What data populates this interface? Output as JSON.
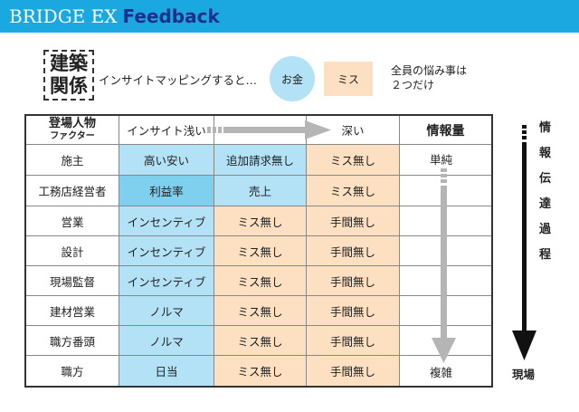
{
  "header": {
    "brand": "BRIDGE EX",
    "subtitle": "Feedback"
  },
  "industry": {
    "line1": "建築",
    "line2": "関係"
  },
  "intro": "インサイトマッピングすると…",
  "circle_label": "お金",
  "miss_label": "ミス",
  "note": {
    "line1": "全員の悩み事は",
    "line2": "２つだけ"
  },
  "table": {
    "role_header": "登場人物",
    "role_header_sub": "ファクター",
    "insight_shallow": "インサイト浅い",
    "insight_deep": "深い",
    "info_header": "情報量",
    "rows": [
      {
        "role": "施主",
        "c1": "高い安い",
        "c2": "追加請求無し",
        "c3": "ミス無し"
      },
      {
        "role": "工務店経営者",
        "c1": "利益率",
        "c2": "売上",
        "c3": "ミス無し"
      },
      {
        "role": "営業",
        "c1": "インセンティブ",
        "c2": "ミス無し",
        "c3": "手間無し"
      },
      {
        "role": "設計",
        "c1": "インセンティブ",
        "c2": "ミス無し",
        "c3": "手間無し"
      },
      {
        "role": "現場監督",
        "c1": "インセンティブ",
        "c2": "ミス無し",
        "c3": "手間無し"
      },
      {
        "role": "建材営業",
        "c1": "ノルマ",
        "c2": "ミス無し",
        "c3": "手間無し"
      },
      {
        "role": "職方番頭",
        "c1": "ノルマ",
        "c2": "ミス無し",
        "c3": "手間無し"
      },
      {
        "role": "職方",
        "c1": "日当",
        "c2": "ミス無し",
        "c3": "手間無し"
      }
    ]
  },
  "info_simple": "単純",
  "info_complex": "複雑",
  "process_label": [
    "情",
    "報",
    "伝",
    "達",
    "過",
    "程"
  ],
  "process_bottom": "現場",
  "colors": {
    "header": "#1ba8e0",
    "brand_sub": "#1a2f8c",
    "blue": "#b3e1f6",
    "blue_strong": "#7fcfef",
    "peach": "#fde0c2",
    "arrow_gray": "#b5b5b5"
  }
}
